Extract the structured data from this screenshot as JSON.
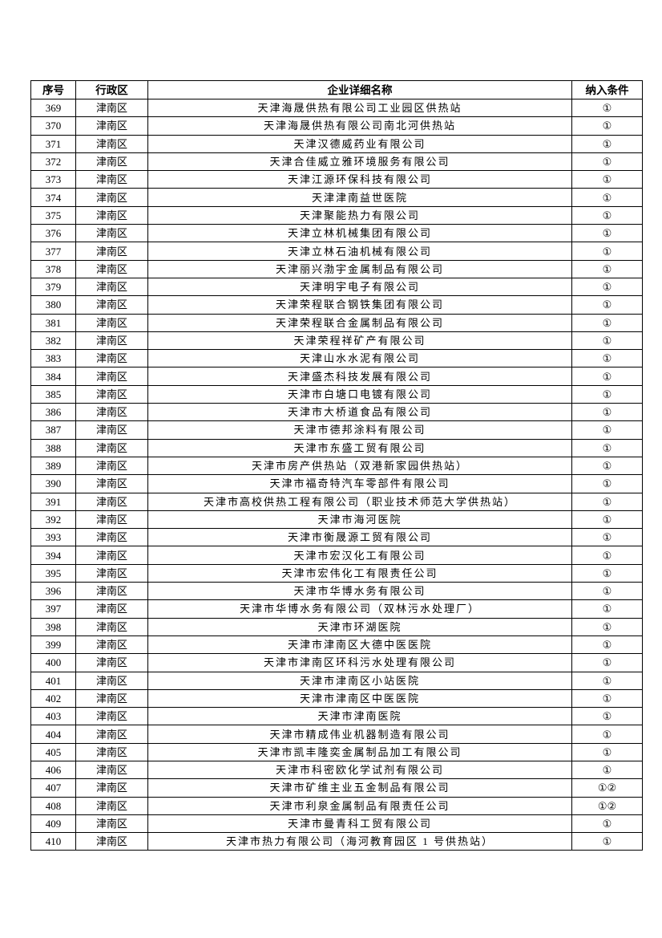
{
  "table": {
    "headers": [
      "序号",
      "行政区",
      "企业详细名称",
      "纳入条件"
    ],
    "rows": [
      [
        "369",
        "津南区",
        "天津海晟供热有限公司工业园区供热站",
        "①"
      ],
      [
        "370",
        "津南区",
        "天津海晟供热有限公司南北河供热站",
        "①"
      ],
      [
        "371",
        "津南区",
        "天津汉德威药业有限公司",
        "①"
      ],
      [
        "372",
        "津南区",
        "天津合佳威立雅环境服务有限公司",
        "①"
      ],
      [
        "373",
        "津南区",
        "天津江源环保科技有限公司",
        "①"
      ],
      [
        "374",
        "津南区",
        "天津津南益世医院",
        "①"
      ],
      [
        "375",
        "津南区",
        "天津聚能热力有限公司",
        "①"
      ],
      [
        "376",
        "津南区",
        "天津立林机械集团有限公司",
        "①"
      ],
      [
        "377",
        "津南区",
        "天津立林石油机械有限公司",
        "①"
      ],
      [
        "378",
        "津南区",
        "天津丽兴渤宇金属制品有限公司",
        "①"
      ],
      [
        "379",
        "津南区",
        "天津明宇电子有限公司",
        "①"
      ],
      [
        "380",
        "津南区",
        "天津荣程联合钢铁集团有限公司",
        "①"
      ],
      [
        "381",
        "津南区",
        "天津荣程联合金属制品有限公司",
        "①"
      ],
      [
        "382",
        "津南区",
        "天津荣程祥矿产有限公司",
        "①"
      ],
      [
        "383",
        "津南区",
        "天津山水水泥有限公司",
        "①"
      ],
      [
        "384",
        "津南区",
        "天津盛杰科技发展有限公司",
        "①"
      ],
      [
        "385",
        "津南区",
        "天津市白塘口电镀有限公司",
        "①"
      ],
      [
        "386",
        "津南区",
        "天津市大桥道食品有限公司",
        "①"
      ],
      [
        "387",
        "津南区",
        "天津市德邦涂料有限公司",
        "①"
      ],
      [
        "388",
        "津南区",
        "天津市东盛工贸有限公司",
        "①"
      ],
      [
        "389",
        "津南区",
        "天津市房产供热站（双港新家园供热站）",
        "①"
      ],
      [
        "390",
        "津南区",
        "天津市福奇特汽车零部件有限公司",
        "①"
      ],
      [
        "391",
        "津南区",
        "天津市高校供热工程有限公司（职业技术师范大学供热站）",
        "①"
      ],
      [
        "392",
        "津南区",
        "天津市海河医院",
        "①"
      ],
      [
        "393",
        "津南区",
        "天津市衡晟源工贸有限公司",
        "①"
      ],
      [
        "394",
        "津南区",
        "天津市宏汉化工有限公司",
        "①"
      ],
      [
        "395",
        "津南区",
        "天津市宏伟化工有限责任公司",
        "①"
      ],
      [
        "396",
        "津南区",
        "天津市华博水务有限公司",
        "①"
      ],
      [
        "397",
        "津南区",
        "天津市华博水务有限公司（双林污水处理厂）",
        "①"
      ],
      [
        "398",
        "津南区",
        "天津市环湖医院",
        "①"
      ],
      [
        "399",
        "津南区",
        "天津市津南区大德中医医院",
        "①"
      ],
      [
        "400",
        "津南区",
        "天津市津南区环科污水处理有限公司",
        "①"
      ],
      [
        "401",
        "津南区",
        "天津市津南区小站医院",
        "①"
      ],
      [
        "402",
        "津南区",
        "天津市津南区中医医院",
        "①"
      ],
      [
        "403",
        "津南区",
        "天津市津南医院",
        "①"
      ],
      [
        "404",
        "津南区",
        "天津市精成伟业机器制造有限公司",
        "①"
      ],
      [
        "405",
        "津南区",
        "天津市凯丰隆奕金属制品加工有限公司",
        "①"
      ],
      [
        "406",
        "津南区",
        "天津市科密欧化学试剂有限公司",
        "①"
      ],
      [
        "407",
        "津南区",
        "天津市矿维主业五金制品有限公司",
        "①②"
      ],
      [
        "408",
        "津南区",
        "天津市利泉金属制品有限责任公司",
        "①②"
      ],
      [
        "409",
        "津南区",
        "天津市曼青科工贸有限公司",
        "①"
      ],
      [
        "410",
        "津南区",
        "天津市热力有限公司（海河教育园区 1 号供热站）",
        "①"
      ]
    ]
  }
}
